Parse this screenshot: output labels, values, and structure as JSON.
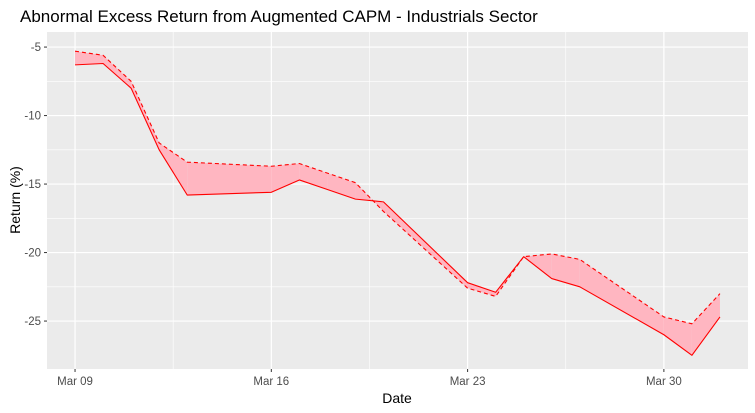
{
  "chart_data": {
    "type": "area",
    "title": "Abnormal Excess Return from Augmented CAPM - Industrials Sector",
    "xlabel": "Date",
    "ylabel": "Return (%)",
    "x_ticks": [
      "Mar 09",
      "Mar 16",
      "Mar 23",
      "Mar 30"
    ],
    "y_ticks": [
      -5,
      -10,
      -15,
      -20,
      -25
    ],
    "xlim": [
      "2020-03-08",
      "2020-04-02"
    ],
    "ylim": [
      -28.5,
      -3.9
    ],
    "grid": true,
    "series": [
      {
        "style": "solid",
        "x": [
          "2020-03-09",
          "2020-03-10",
          "2020-03-11",
          "2020-03-12",
          "2020-03-13",
          "2020-03-16",
          "2020-03-17",
          "2020-03-18",
          "2020-03-19",
          "2020-03-20",
          "2020-03-23",
          "2020-03-24",
          "2020-03-25",
          "2020-03-26",
          "2020-03-27",
          "2020-03-30",
          "2020-03-31",
          "2020-04-01"
        ],
        "values": [
          -6.3,
          -6.2,
          -8.0,
          -12.5,
          -15.8,
          -15.6,
          -14.7,
          -15.4,
          -16.1,
          -16.3,
          -22.2,
          -22.9,
          -20.3,
          -21.9,
          -22.5,
          -26.0,
          -27.5,
          -24.7
        ]
      },
      {
        "style": "dashed",
        "x": [
          "2020-03-09",
          "2020-03-10",
          "2020-03-11",
          "2020-03-12",
          "2020-03-13",
          "2020-03-16",
          "2020-03-17",
          "2020-03-18",
          "2020-03-19",
          "2020-03-20",
          "2020-03-23",
          "2020-03-24",
          "2020-03-25",
          "2020-03-26",
          "2020-03-27",
          "2020-03-30",
          "2020-03-31",
          "2020-04-01"
        ],
        "values": [
          -5.3,
          -5.6,
          -7.5,
          -12.0,
          -13.4,
          -13.7,
          -13.5,
          -14.2,
          -14.9,
          -17.0,
          -22.6,
          -23.2,
          -20.3,
          -20.1,
          -20.5,
          -24.7,
          -25.2,
          -23.0
        ]
      }
    ],
    "colors": {
      "panel_background": "#ebebeb",
      "grid": "#ffffff",
      "line": "#ff0000",
      "fill": "#ffb6c1"
    }
  }
}
